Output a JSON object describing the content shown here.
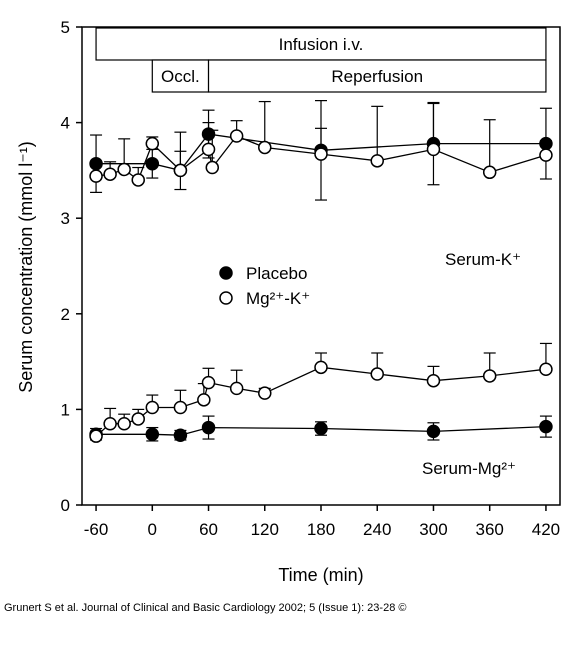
{
  "chart_data": {
    "type": "line",
    "xlabel": "Time (min)",
    "ylabel": "Serum concentration (mmol l⁻¹)",
    "xlim": [
      -75,
      435
    ],
    "ylim": [
      0,
      5
    ],
    "x_ticks": [
      "-60",
      "0",
      "60",
      "120",
      "180",
      "240",
      "300",
      "360",
      "420"
    ],
    "x_tick_values": [
      -60,
      0,
      60,
      120,
      180,
      240,
      300,
      360,
      420
    ],
    "y_ticks": [
      "0",
      "1",
      "2",
      "3",
      "4",
      "5"
    ],
    "y_tick_values": [
      0,
      1,
      2,
      3,
      4,
      5
    ],
    "grid": false,
    "legend_position": "center-left",
    "phase_bars": {
      "infusion": {
        "label": "Infusion i.v.",
        "start": -60,
        "end": 420
      },
      "occlusion": {
        "label": "Occl.",
        "start": 0,
        "end": 60
      },
      "reperfusion": {
        "label": "Reperfusion",
        "start": 60,
        "end": 420
      }
    },
    "panel_labels": {
      "potassium": "Serum-K⁺",
      "magnesium": "Serum-Mg²⁺"
    },
    "series": [
      {
        "name": "Placebo",
        "group": "potassium",
        "marker": "filled",
        "points": [
          {
            "x": -60,
            "y": 3.57,
            "err": 0.3
          },
          {
            "x": 0,
            "y": 3.57,
            "err": 0.15
          },
          {
            "x": 30,
            "y": 3.5,
            "err": 0.2
          },
          {
            "x": 60,
            "y": 3.88,
            "err": 0.25
          },
          {
            "x": 180,
            "y": 3.71,
            "err": 0.52
          },
          {
            "x": 300,
            "y": 3.78,
            "err": 0.43
          },
          {
            "x": 420,
            "y": 3.78,
            "err": 0.37
          }
        ]
      },
      {
        "name": "Mg²⁺-K⁺",
        "group": "potassium",
        "marker": "open",
        "points": [
          {
            "x": -60,
            "y": 3.44,
            "err": 0.1
          },
          {
            "x": -45,
            "y": 3.46,
            "err": 0.13
          },
          {
            "x": -30,
            "y": 3.51,
            "err": 0.32
          },
          {
            "x": -15,
            "y": 3.4,
            "err": 0.13
          },
          {
            "x": 0,
            "y": 3.78,
            "err": 0.07
          },
          {
            "x": 30,
            "y": 3.5,
            "err": 0.4
          },
          {
            "x": 60,
            "y": 3.72,
            "err": 0.28
          },
          {
            "x": 64,
            "y": 3.53,
            "err": 0.39
          },
          {
            "x": 90,
            "y": 3.86,
            "err": 0.16
          },
          {
            "x": 120,
            "y": 3.74,
            "err": 0.48
          },
          {
            "x": 180,
            "y": 3.67,
            "err": 0.27
          },
          {
            "x": 240,
            "y": 3.6,
            "err": 0.57
          },
          {
            "x": 300,
            "y": 3.72,
            "err": 0.48
          },
          {
            "x": 360,
            "y": 3.48,
            "err": 0.55
          },
          {
            "x": 420,
            "y": 3.66,
            "err": 0.15
          }
        ]
      },
      {
        "name": "Placebo",
        "group": "magnesium",
        "marker": "filled",
        "points": [
          {
            "x": -60,
            "y": 0.74,
            "err": 0.06
          },
          {
            "x": 0,
            "y": 0.74,
            "err": 0.07
          },
          {
            "x": 30,
            "y": 0.73,
            "err": 0.05
          },
          {
            "x": 60,
            "y": 0.81,
            "err": 0.12
          },
          {
            "x": 180,
            "y": 0.8,
            "err": 0.07
          },
          {
            "x": 300,
            "y": 0.77,
            "err": 0.09
          },
          {
            "x": 420,
            "y": 0.82,
            "err": 0.11
          }
        ]
      },
      {
        "name": "Mg²⁺-K⁺",
        "group": "magnesium",
        "marker": "open",
        "points": [
          {
            "x": -60,
            "y": 0.72,
            "err": 0.05
          },
          {
            "x": -45,
            "y": 0.85,
            "err": 0.16
          },
          {
            "x": -30,
            "y": 0.85,
            "err": 0.1
          },
          {
            "x": -15,
            "y": 0.9,
            "err": 0.1
          },
          {
            "x": 0,
            "y": 1.02,
            "err": 0.13
          },
          {
            "x": 30,
            "y": 1.02,
            "err": 0.18
          },
          {
            "x": 55,
            "y": 1.1,
            "err": 0.17
          },
          {
            "x": 60,
            "y": 1.28,
            "err": 0.15
          },
          {
            "x": 90,
            "y": 1.22,
            "err": 0.19
          },
          {
            "x": 120,
            "y": 1.17,
            "err": 0.05
          },
          {
            "x": 180,
            "y": 1.44,
            "err": 0.15
          },
          {
            "x": 240,
            "y": 1.37,
            "err": 0.22
          },
          {
            "x": 300,
            "y": 1.3,
            "err": 0.15
          },
          {
            "x": 360,
            "y": 1.35,
            "err": 0.24
          },
          {
            "x": 420,
            "y": 1.42,
            "err": 0.27
          }
        ]
      }
    ]
  },
  "legend": [
    {
      "label": "Placebo",
      "marker": "filled"
    },
    {
      "label": "Mg²⁺-K⁺",
      "marker": "open"
    }
  ],
  "footer": {
    "credit": "Grunert S et al. Journal of Clinical and Basic Cardiology 2002; 5 (Issue 1): 23-28 ©"
  }
}
